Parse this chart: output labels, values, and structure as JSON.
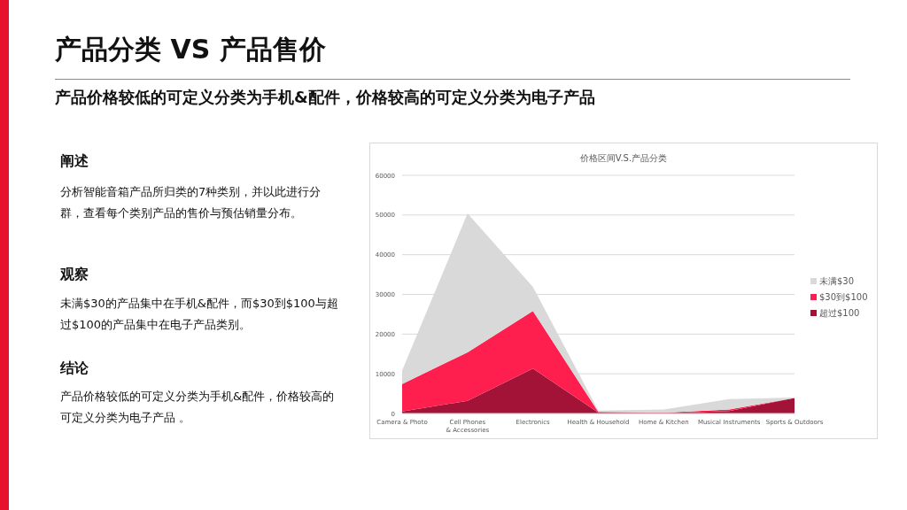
{
  "chart_data": {
    "type": "area",
    "stacked": true,
    "title": "价格区间V.S.产品分类",
    "categories": [
      "Camera & Photo",
      "Cell Phones & Accessories",
      "Electronics",
      "Health & Household",
      "Home & Kitchen",
      "Musical Instruments",
      "Sports & Outdoors"
    ],
    "series": [
      {
        "name": "超过$100",
        "color": "#a31237",
        "values": [
          500,
          3200,
          11300,
          200,
          100,
          600,
          3900
        ]
      },
      {
        "name": "$30到$100",
        "color": "#ff1f4f",
        "values": [
          6900,
          12200,
          14500,
          200,
          100,
          400,
          0
        ]
      },
      {
        "name": "未满$30",
        "color": "#d9d9d9",
        "values": [
          3400,
          35000,
          6100,
          300,
          800,
          2600,
          100
        ]
      }
    ],
    "ylim": [
      0,
      60000
    ],
    "yticks": [
      0,
      10000,
      20000,
      30000,
      40000,
      50000,
      60000
    ],
    "grid": "y",
    "legend": "right",
    "annotations": [
      "产品分类 VS 产品售价",
      "产品价格较低的可定义分类为手机&配件，价格较高的可定义分类为电子产品",
      "阐述",
      "分析智能音箱产品所归类的7种类别，并以此进行分群，查看每个类别产品的售价与预估销量分布。",
      "观察",
      "未满$30的产品集中在手机&配件，而$30到$100与超过$100的产品集中在电子产品类别。",
      "结论",
      "产品价格较低的可定义分类为手机&配件，价格较高的可定义分类为电子产品 。"
    ]
  }
}
